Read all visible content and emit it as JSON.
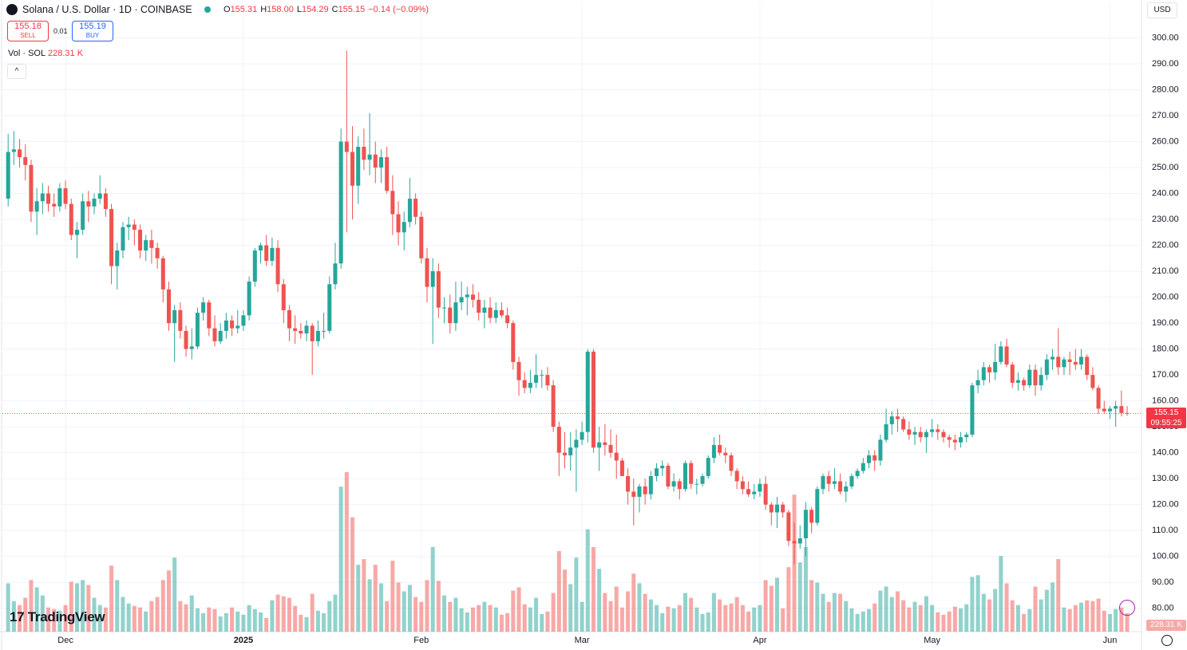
{
  "header": {
    "symbol": "Solana / U.S. Dollar · 1D · COINBASE",
    "ohlc": [
      {
        "key": "O",
        "value": "155.31"
      },
      {
        "key": "H",
        "value": "158.00"
      },
      {
        "key": "L",
        "value": "154.29"
      },
      {
        "key": "C",
        "value": "155.15"
      }
    ],
    "change": "−0.14 (−0.09%)",
    "sell_price": "155.18",
    "sell": "SELL",
    "spread": "0.01",
    "buy_price": "155.19",
    "buy": "BUY",
    "vol_label": "Vol · SOL",
    "vol_value": "228.31 K",
    "currency": "USD",
    "countdown": "09:55:25",
    "logo": "TradingView"
  },
  "chart_data": {
    "type": "candlestick",
    "up_color": "#26a69a",
    "down_color": "#ef5350",
    "grid": true,
    "ylim": [
      71,
      314
    ],
    "xlim": [
      -1,
      197.5
    ],
    "yticks": [
      {
        "value": 80,
        "label": "80.00"
      },
      {
        "value": 90,
        "label": "90.00"
      },
      {
        "value": 100,
        "label": "100.00"
      },
      {
        "value": 110,
        "label": "110.00"
      },
      {
        "value": 120,
        "label": "120.00"
      },
      {
        "value": 130,
        "label": "130.00"
      },
      {
        "value": 140,
        "label": "140.00"
      },
      {
        "value": 150,
        "label": "150.00"
      },
      {
        "value": 160,
        "label": "160.00"
      },
      {
        "value": 170,
        "label": "170.00"
      },
      {
        "value": 180,
        "label": "180.00"
      },
      {
        "value": 190,
        "label": "190.00"
      },
      {
        "value": 200,
        "label": "200.00"
      },
      {
        "value": 210,
        "label": "210.00"
      },
      {
        "value": 220,
        "label": "220.00"
      },
      {
        "value": 230,
        "label": "230.00"
      },
      {
        "value": 240,
        "label": "240.00"
      },
      {
        "value": 250,
        "label": "250.00"
      },
      {
        "value": 260,
        "label": "260.00"
      },
      {
        "value": 270,
        "label": "270.00"
      },
      {
        "value": 280,
        "label": "280.00"
      },
      {
        "value": 290,
        "label": "290.00"
      },
      {
        "value": 300,
        "label": "300.00"
      }
    ],
    "xticks": [
      {
        "value": 10,
        "label": "Dec"
      },
      {
        "value": 41,
        "label": "2025"
      },
      {
        "value": 72,
        "label": "Feb"
      },
      {
        "value": 100,
        "label": "Mar"
      },
      {
        "value": 131,
        "label": "Apr"
      },
      {
        "value": 161,
        "label": "May"
      },
      {
        "value": 192,
        "label": "Jun"
      }
    ],
    "candles": [
      [
        238,
        263,
        235,
        256,
        600
      ],
      [
        256,
        264,
        251,
        257,
        380
      ],
      [
        257,
        261,
        250,
        254,
        330
      ],
      [
        254,
        259,
        245,
        251,
        420
      ],
      [
        251,
        253,
        229,
        233,
        640
      ],
      [
        233,
        242,
        224,
        237,
        550
      ],
      [
        237,
        244,
        232,
        240,
        450
      ],
      [
        240,
        243,
        233,
        236,
        300
      ],
      [
        236,
        240,
        231,
        235,
        280
      ],
      [
        235,
        244,
        233,
        242,
        260
      ],
      [
        242,
        245,
        234,
        236,
        330
      ],
      [
        236,
        238,
        222,
        224,
        620
      ],
      [
        224,
        229,
        215,
        226,
        600
      ],
      [
        226,
        240,
        224,
        237,
        640
      ],
      [
        237,
        241,
        229,
        235,
        580
      ],
      [
        235,
        240,
        232,
        238,
        420
      ],
      [
        238,
        247,
        236,
        240,
        330
      ],
      [
        240,
        242,
        231,
        234,
        300
      ],
      [
        234,
        236,
        205,
        212,
        820
      ],
      [
        212,
        221,
        203,
        218,
        640
      ],
      [
        218,
        229,
        215,
        227,
        430
      ],
      [
        227,
        231,
        222,
        228,
        350
      ],
      [
        228,
        230,
        220,
        226,
        320
      ],
      [
        226,
        228,
        215,
        218,
        300
      ],
      [
        218,
        224,
        214,
        222,
        250
      ],
      [
        222,
        226,
        213,
        219,
        380
      ],
      [
        219,
        221,
        211,
        215,
        430
      ],
      [
        215,
        216,
        198,
        203,
        640
      ],
      [
        203,
        206,
        187,
        190,
        760
      ],
      [
        190,
        197,
        175,
        195,
        920
      ],
      [
        195,
        198,
        184,
        187,
        380
      ],
      [
        187,
        189,
        177,
        180,
        340
      ],
      [
        180,
        188,
        176,
        181,
        450
      ],
      [
        181,
        196,
        180,
        194,
        290
      ],
      [
        194,
        200,
        191,
        198,
        230
      ],
      [
        198,
        199,
        185,
        188,
        300
      ],
      [
        188,
        193,
        181,
        183,
        280
      ],
      [
        183,
        190,
        182,
        187,
        190
      ],
      [
        187,
        194,
        184,
        191,
        230
      ],
      [
        191,
        193,
        185,
        188,
        300
      ],
      [
        188,
        195,
        186,
        189,
        250
      ],
      [
        189,
        195,
        187,
        193,
        210
      ],
      [
        193,
        208,
        191,
        206,
        330
      ],
      [
        206,
        219,
        204,
        218,
        280
      ],
      [
        218,
        221,
        213,
        220,
        240
      ],
      [
        220,
        224,
        212,
        214,
        170
      ],
      [
        214,
        223,
        212,
        219,
        390
      ],
      [
        219,
        222,
        202,
        205,
        460
      ],
      [
        205,
        207,
        190,
        195,
        440
      ],
      [
        195,
        197,
        183,
        188,
        420
      ],
      [
        188,
        193,
        182,
        187,
        320
      ],
      [
        187,
        190,
        184,
        186,
        210
      ],
      [
        186,
        191,
        183,
        189,
        180
      ],
      [
        189,
        190,
        170,
        183,
        470
      ],
      [
        183,
        191,
        181,
        187,
        260
      ],
      [
        187,
        194,
        184,
        187,
        230
      ],
      [
        187,
        208,
        186,
        205,
        380
      ],
      [
        205,
        221,
        203,
        213,
        460
      ],
      [
        213,
        265,
        211,
        260,
        1800
      ],
      [
        260,
        295,
        225,
        256,
        1980
      ],
      [
        256,
        266,
        230,
        243,
        1420
      ],
      [
        243,
        262,
        236,
        258,
        830
      ],
      [
        258,
        265,
        249,
        253,
        900
      ],
      [
        253,
        271,
        247,
        255,
        650
      ],
      [
        255,
        260,
        244,
        250,
        830
      ],
      [
        250,
        257,
        244,
        254,
        600
      ],
      [
        254,
        258,
        240,
        241,
        380
      ],
      [
        241,
        247,
        224,
        232,
        880
      ],
      [
        232,
        237,
        220,
        225,
        610
      ],
      [
        225,
        233,
        218,
        229,
        500
      ],
      [
        229,
        246,
        227,
        238,
        580
      ],
      [
        238,
        240,
        228,
        231,
        430
      ],
      [
        231,
        233,
        213,
        215,
        370
      ],
      [
        215,
        219,
        198,
        204,
        640
      ],
      [
        204,
        215,
        182,
        210,
        1050
      ],
      [
        210,
        213,
        192,
        196,
        630
      ],
      [
        196,
        200,
        190,
        196,
        450
      ],
      [
        196,
        201,
        186,
        190,
        370
      ],
      [
        190,
        206,
        187,
        198,
        420
      ],
      [
        198,
        206,
        195,
        200,
        290
      ],
      [
        200,
        204,
        193,
        201,
        240
      ],
      [
        201,
        205,
        196,
        199,
        300
      ],
      [
        199,
        202,
        191,
        194,
        330
      ],
      [
        194,
        199,
        188,
        196,
        370
      ],
      [
        196,
        200,
        190,
        192,
        330
      ],
      [
        192,
        198,
        190,
        195,
        300
      ],
      [
        195,
        198,
        192,
        193,
        210
      ],
      [
        193,
        196,
        188,
        190,
        230
      ],
      [
        190,
        191,
        172,
        175,
        510
      ],
      [
        175,
        177,
        162,
        168,
        550
      ],
      [
        168,
        171,
        163,
        165,
        340
      ],
      [
        165,
        172,
        163,
        167,
        300
      ],
      [
        167,
        178,
        165,
        170,
        420
      ],
      [
        170,
        172,
        165,
        170,
        220
      ],
      [
        170,
        173,
        164,
        166,
        250
      ],
      [
        166,
        168,
        148,
        150,
        480
      ],
      [
        150,
        152,
        131,
        140,
        1000
      ],
      [
        140,
        148,
        134,
        139,
        770
      ],
      [
        139,
        148,
        133,
        142,
        590
      ],
      [
        142,
        149,
        125,
        145,
        920
      ],
      [
        145,
        152,
        143,
        148,
        370
      ],
      [
        148,
        180,
        144,
        179,
        1270
      ],
      [
        179,
        180,
        140,
        142,
        1050
      ],
      [
        142,
        150,
        133,
        144,
        780
      ],
      [
        144,
        151,
        139,
        143,
        480
      ],
      [
        143,
        149,
        138,
        140,
        380
      ],
      [
        140,
        147,
        130,
        137,
        560
      ],
      [
        137,
        138,
        131,
        131,
        300
      ],
      [
        131,
        134,
        120,
        125,
        500
      ],
      [
        125,
        130,
        112,
        123,
        720
      ],
      [
        123,
        128,
        117,
        127,
        600
      ],
      [
        127,
        130,
        120,
        124,
        470
      ],
      [
        124,
        133,
        122,
        131,
        400
      ],
      [
        131,
        136,
        129,
        134,
        330
      ],
      [
        134,
        137,
        131,
        135,
        230
      ],
      [
        135,
        136,
        126,
        127,
        310
      ],
      [
        127,
        132,
        125,
        129,
        290
      ],
      [
        129,
        130,
        122,
        126,
        330
      ],
      [
        126,
        137,
        125,
        136,
        480
      ],
      [
        136,
        137,
        126,
        128,
        420
      ],
      [
        128,
        130,
        124,
        128,
        300
      ],
      [
        128,
        132,
        127,
        131,
        220
      ],
      [
        131,
        139,
        130,
        138,
        240
      ],
      [
        138,
        146,
        136,
        143,
        480
      ],
      [
        143,
        147,
        139,
        140,
        400
      ],
      [
        140,
        142,
        136,
        139,
        330
      ],
      [
        139,
        140,
        131,
        133,
        350
      ],
      [
        133,
        134,
        126,
        129,
        430
      ],
      [
        129,
        131,
        124,
        126,
        330
      ],
      [
        126,
        129,
        123,
        124,
        250
      ],
      [
        124,
        128,
        122,
        125,
        300
      ],
      [
        125,
        130,
        123,
        128,
        330
      ],
      [
        128,
        131,
        118,
        120,
        640
      ],
      [
        120,
        121,
        112,
        117,
        570
      ],
      [
        117,
        123,
        111,
        120,
        670
      ],
      [
        120,
        121,
        115,
        117,
        290
      ],
      [
        117,
        118,
        104,
        106,
        800
      ],
      [
        106,
        113,
        97,
        105,
        1700
      ],
      [
        105,
        112,
        103,
        107,
        860
      ],
      [
        107,
        121,
        100,
        118,
        1050
      ],
      [
        118,
        119,
        109,
        113,
        640
      ],
      [
        113,
        127,
        112,
        126,
        610
      ],
      [
        126,
        132,
        124,
        131,
        470
      ],
      [
        131,
        133,
        125,
        128,
        370
      ],
      [
        128,
        134,
        126,
        129,
        480
      ],
      [
        129,
        132,
        124,
        125,
        470
      ],
      [
        125,
        129,
        121,
        127,
        380
      ],
      [
        127,
        132,
        126,
        131,
        290
      ],
      [
        131,
        134,
        130,
        133,
        220
      ],
      [
        133,
        138,
        132,
        136,
        250
      ],
      [
        136,
        141,
        134,
        139,
        280
      ],
      [
        139,
        141,
        133,
        137,
        350
      ],
      [
        137,
        147,
        135,
        145,
        510
      ],
      [
        145,
        157,
        144,
        151,
        560
      ],
      [
        151,
        156,
        147,
        154,
        430
      ],
      [
        154,
        157,
        148,
        153,
        500
      ],
      [
        153,
        154,
        148,
        149,
        390
      ],
      [
        149,
        152,
        145,
        147,
        300
      ],
      [
        147,
        150,
        143,
        148,
        370
      ],
      [
        148,
        150,
        144,
        146,
        330
      ],
      [
        146,
        149,
        140,
        148,
        440
      ],
      [
        148,
        153,
        146,
        149,
        330
      ],
      [
        149,
        151,
        145,
        148,
        240
      ],
      [
        148,
        149,
        144,
        146,
        210
      ],
      [
        146,
        147,
        142,
        145,
        250
      ],
      [
        145,
        147,
        141,
        144,
        310
      ],
      [
        144,
        148,
        142,
        146,
        290
      ],
      [
        146,
        148,
        144,
        147,
        340
      ],
      [
        147,
        167,
        146,
        166,
        680
      ],
      [
        166,
        172,
        163,
        168,
        700
      ],
      [
        168,
        175,
        166,
        173,
        470
      ],
      [
        173,
        174,
        167,
        171,
        400
      ],
      [
        171,
        182,
        168,
        175,
        530
      ],
      [
        175,
        183,
        174,
        181,
        940
      ],
      [
        181,
        184,
        173,
        174,
        600
      ],
      [
        174,
        175,
        165,
        167,
        390
      ],
      [
        167,
        171,
        164,
        168,
        330
      ],
      [
        168,
        169,
        164,
        166,
        220
      ],
      [
        166,
        174,
        165,
        172,
        280
      ],
      [
        172,
        174,
        162,
        166,
        560
      ],
      [
        166,
        173,
        164,
        170,
        400
      ],
      [
        170,
        178,
        168,
        176,
        520
      ],
      [
        176,
        180,
        172,
        177,
        610
      ],
      [
        177,
        188,
        170,
        173,
        900
      ],
      [
        173,
        177,
        170,
        176,
        300
      ],
      [
        176,
        179,
        170,
        175,
        280
      ],
      [
        175,
        180,
        172,
        174,
        330
      ],
      [
        174,
        180,
        172,
        177,
        360
      ],
      [
        177,
        178,
        168,
        170,
        390
      ],
      [
        170,
        173,
        164,
        165,
        380
      ],
      [
        165,
        166,
        155,
        157,
        410
      ],
      [
        157,
        160,
        155,
        156,
        260
      ],
      [
        156,
        158,
        153,
        157,
        220
      ],
      [
        157,
        160,
        150,
        158,
        280
      ],
      [
        158,
        164,
        154,
        155.31,
        300
      ],
      [
        155.31,
        158,
        154.29,
        155.15,
        228.31
      ]
    ]
  }
}
